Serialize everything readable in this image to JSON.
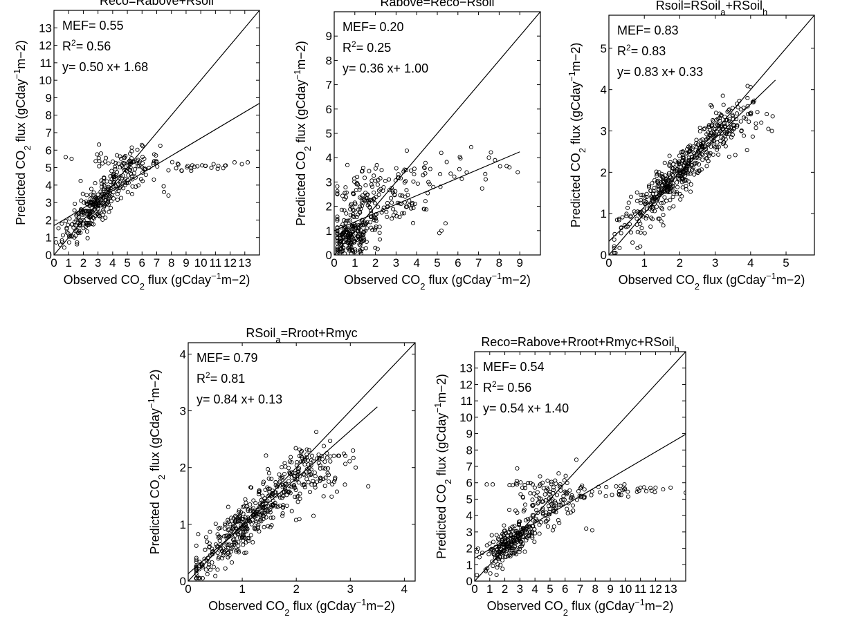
{
  "chart_data": [
    {
      "type": "scatter",
      "title": "Reco=Rabove+Rsoil",
      "xlabel": "Observed CO2 flux (gCday-1m-2)",
      "ylabel": "Predicted CO2 flux (gCday-1m-2)",
      "xlim": [
        0,
        14
      ],
      "ylim": [
        0,
        14
      ],
      "xticks": [
        "0",
        "1",
        "2",
        "3",
        "4",
        "5",
        "6",
        "7",
        "8",
        "9",
        "10",
        "11",
        "12",
        "13"
      ],
      "yticks": [
        "0",
        "1",
        "2",
        "3",
        "4",
        "5",
        "6",
        "7",
        "8",
        "9",
        "10",
        "11",
        "12",
        "13"
      ],
      "stats": {
        "mef_label": "MEF=",
        "mef": "0.55",
        "r2_label": "R",
        "r2_value_label": "=",
        "r2": "0.56",
        "eq": "y= 0.50 x+ 1.68"
      },
      "fit": {
        "slope": 0.5,
        "intercept": 1.68
      },
      "one_to_one": true,
      "cloud": [
        {
          "cx": 2.6,
          "cy": 2.6,
          "sx": 1.0,
          "sy": 0.9,
          "n": 220,
          "corr": 0.8
        },
        {
          "cx": 5.0,
          "cy": 4.8,
          "sx": 1.1,
          "sy": 0.6,
          "n": 120,
          "corr": 0.4
        },
        {
          "cx": 9.5,
          "cy": 5.1,
          "sx": 1.8,
          "sy": 0.25,
          "n": 25,
          "corr": 0.0
        },
        {
          "cx": 3.2,
          "cy": 5.5,
          "sx": 0.3,
          "sy": 0.25,
          "n": 8,
          "corr": 0.0
        }
      ],
      "points": [
        [
          1.2,
          5.5
        ],
        [
          0.8,
          5.6
        ],
        [
          12.3,
          5.3
        ],
        [
          13.2,
          5.3
        ],
        [
          12.8,
          5.2
        ],
        [
          11.2,
          5.1
        ],
        [
          7.8,
          3.4
        ],
        [
          7.5,
          3.6
        ]
      ]
    },
    {
      "type": "scatter",
      "title": "Rabove=Reco−Rsoil",
      "xlabel": "Observed CO2 flux (gCday-1m-2)",
      "ylabel": "Predicted CO2 flux (gCday-1m-2)",
      "xlim": [
        0,
        10
      ],
      "ylim": [
        0,
        10
      ],
      "xticks": [
        "0",
        "1",
        "2",
        "3",
        "4",
        "5",
        "6",
        "7",
        "8",
        "9"
      ],
      "yticks": [
        "0",
        "1",
        "2",
        "3",
        "4",
        "5",
        "6",
        "7",
        "8",
        "9"
      ],
      "stats": {
        "mef_label": "MEF=",
        "mef": "0.20",
        "r2_label": "R",
        "r2_value_label": "=",
        "r2": "0.25",
        "eq": "y= 0.36 x+ 1.00"
      },
      "fit": {
        "slope": 0.36,
        "intercept": 1.0
      },
      "one_to_one": true,
      "cloud": [
        {
          "cx": 0.8,
          "cy": 0.7,
          "sx": 0.5,
          "sy": 0.35,
          "n": 160,
          "corr": 0.2
        },
        {
          "cx": 1.5,
          "cy": 2.0,
          "sx": 1.0,
          "sy": 0.9,
          "n": 160,
          "corr": 0.3
        },
        {
          "cx": 3.5,
          "cy": 2.7,
          "sx": 0.9,
          "sy": 0.8,
          "n": 60,
          "corr": 0.3
        },
        {
          "cx": 6.0,
          "cy": 3.5,
          "sx": 1.0,
          "sy": 0.4,
          "n": 15,
          "corr": 0.0
        }
      ],
      "points": [
        [
          8.9,
          3.4
        ],
        [
          8.5,
          3.6
        ],
        [
          7.8,
          3.9
        ],
        [
          7.5,
          4.0
        ],
        [
          5.2,
          1.0
        ],
        [
          5.4,
          1.3
        ],
        [
          5.1,
          0.9
        ]
      ]
    },
    {
      "type": "scatter",
      "title": "Rsoil=RSoil",
      "title_sub1": "a",
      "title_mid": "+RSoil",
      "title_sub2": "h",
      "xlabel": "Observed CO2 flux (gCday-1m-2)",
      "ylabel": "Predicted CO2 flux (gCday-1m-2)",
      "xlim": [
        0,
        5.8
      ],
      "ylim": [
        0,
        5.8
      ],
      "xticks": [
        "0",
        "1",
        "2",
        "3",
        "4",
        "5"
      ],
      "yticks": [
        "0",
        "1",
        "2",
        "3",
        "4",
        "5"
      ],
      "stats": {
        "mef_label": "MEF=",
        "mef": "0.83",
        "r2_label": "R",
        "r2_value_label": "=",
        "r2": "0.83",
        "eq": "y= 0.83 x+ 0.33"
      },
      "fit": {
        "slope": 0.83,
        "intercept": 0.33
      },
      "one_to_one": true,
      "cloud": [
        {
          "cx": 1.9,
          "cy": 1.9,
          "sx": 0.8,
          "sy": 0.75,
          "n": 420,
          "corr": 0.93
        },
        {
          "cx": 3.4,
          "cy": 3.1,
          "sx": 0.45,
          "sy": 0.35,
          "n": 90,
          "corr": 0.5
        }
      ],
      "points": [
        [
          4.6,
          3.0
        ],
        [
          4.5,
          3.05
        ],
        [
          4.3,
          3.2
        ]
      ]
    },
    {
      "type": "scatter",
      "title": "RSoil",
      "title_sub1": "a",
      "title_mid": "=Rroot+Rmyc",
      "xlabel": "Observed CO2 flux (gCday-1m-2)",
      "ylabel": "Predicted CO2 flux (gCday-1m-2)",
      "xlim": [
        0,
        4.2
      ],
      "ylim": [
        0,
        4.2
      ],
      "xticks": [
        "0",
        "1",
        "2",
        "3",
        "4"
      ],
      "yticks": [
        "0",
        "1",
        "2",
        "3",
        "4"
      ],
      "stats": {
        "mef_label": "MEF=",
        "mef": "0.79",
        "r2_label": "R",
        "r2_value_label": "=",
        "r2": "0.81",
        "eq": "y= 0.84 x+ 0.13"
      },
      "fit": {
        "slope": 0.84,
        "intercept": 0.13
      },
      "one_to_one": true,
      "cloud": [
        {
          "cx": 1.0,
          "cy": 0.95,
          "sx": 0.55,
          "sy": 0.5,
          "n": 380,
          "corr": 0.9
        },
        {
          "cx": 2.2,
          "cy": 1.9,
          "sx": 0.4,
          "sy": 0.35,
          "n": 130,
          "corr": 0.45
        }
      ],
      "points": [
        [
          3.1,
          2.0
        ],
        [
          3.05,
          2.3
        ],
        [
          2.9,
          1.7
        ],
        [
          2.7,
          1.75
        ],
        [
          2.5,
          1.8
        ]
      ]
    },
    {
      "type": "scatter",
      "title": "Reco=Rabove+Rroot+Rmyc+RSoil",
      "title_sub1": "h",
      "xlabel": "Observed CO2 flux (gCday-1m-2)",
      "ylabel": "Predicted CO2 flux (gCday-1m-2)",
      "xlim": [
        0,
        14
      ],
      "ylim": [
        0,
        14
      ],
      "xticks": [
        "0",
        "1",
        "2",
        "3",
        "4",
        "5",
        "6",
        "7",
        "8",
        "9",
        "10",
        "11",
        "12",
        "13"
      ],
      "yticks": [
        "0",
        "1",
        "2",
        "3",
        "4",
        "5",
        "6",
        "7",
        "8",
        "9",
        "10",
        "11",
        "12",
        "13"
      ],
      "stats": {
        "mef_label": "MEF=",
        "mef": "0.54",
        "r2_label": "R",
        "r2_value_label": "=",
        "r2": "0.56",
        "eq": "y= 0.54 x+ 1.40"
      },
      "fit": {
        "slope": 0.54,
        "intercept": 1.4
      },
      "one_to_one": true,
      "cloud": [
        {
          "cx": 2.4,
          "cy": 2.4,
          "sx": 0.9,
          "sy": 0.7,
          "n": 220,
          "corr": 0.7
        },
        {
          "cx": 5.0,
          "cy": 4.9,
          "sx": 1.1,
          "sy": 0.8,
          "n": 130,
          "corr": 0.4
        },
        {
          "cx": 9.5,
          "cy": 5.5,
          "sx": 1.6,
          "sy": 0.25,
          "n": 30,
          "corr": 0.0
        },
        {
          "cx": 3.0,
          "cy": 5.9,
          "sx": 0.4,
          "sy": 0.2,
          "n": 10,
          "corr": 0.0
        }
      ],
      "points": [
        [
          1.2,
          5.9
        ],
        [
          0.8,
          5.9
        ],
        [
          12.0,
          5.7
        ],
        [
          13.0,
          5.7
        ],
        [
          12.5,
          5.6
        ],
        [
          11.0,
          5.7
        ],
        [
          7.8,
          3.1
        ],
        [
          7.4,
          3.2
        ]
      ]
    }
  ]
}
